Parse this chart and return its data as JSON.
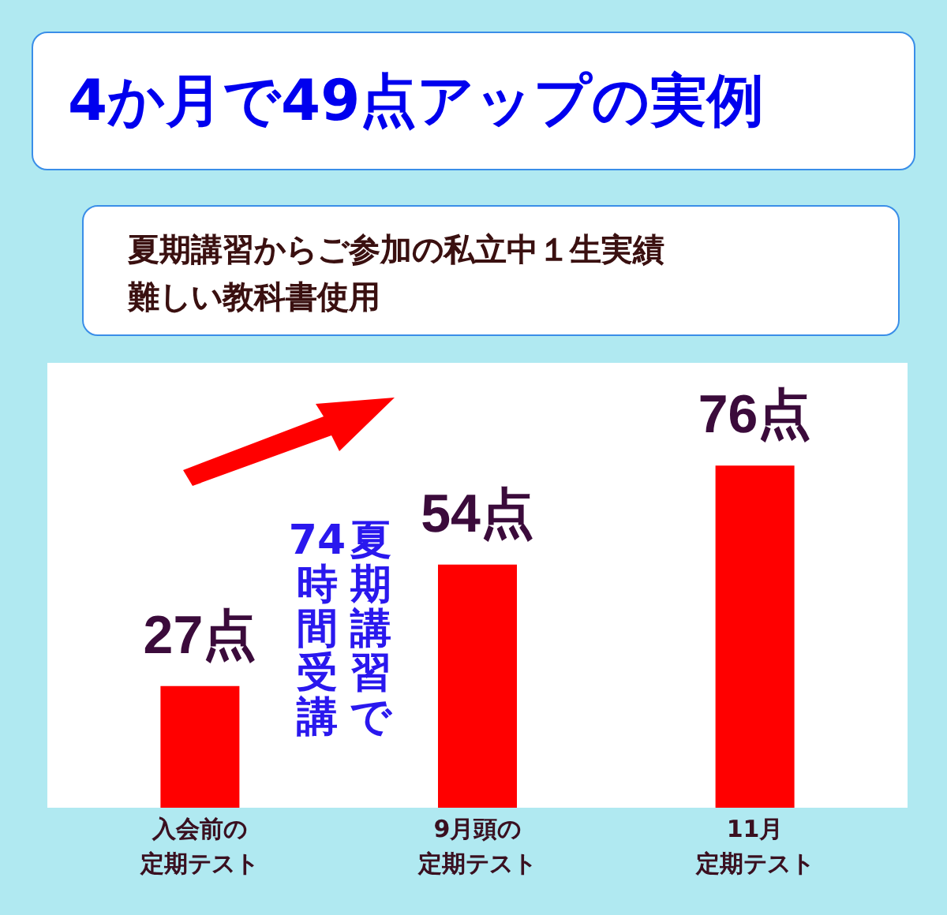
{
  "chart_data": {
    "type": "bar",
    "title": "4か月で49点アップの実例",
    "subtitle": "夏期講習からご参加の私立中１生実績難しい教科書使用",
    "categories": [
      "入会前の定期テスト",
      "9月頭の定期テスト",
      "11月定期テスト"
    ],
    "values": [
      27,
      54,
      76
    ],
    "value_labels": [
      "27点",
      "54点",
      "76点"
    ],
    "color": "#ff0000",
    "annotations": [
      "夏期講習で",
      "74時間受講"
    ]
  }
}
